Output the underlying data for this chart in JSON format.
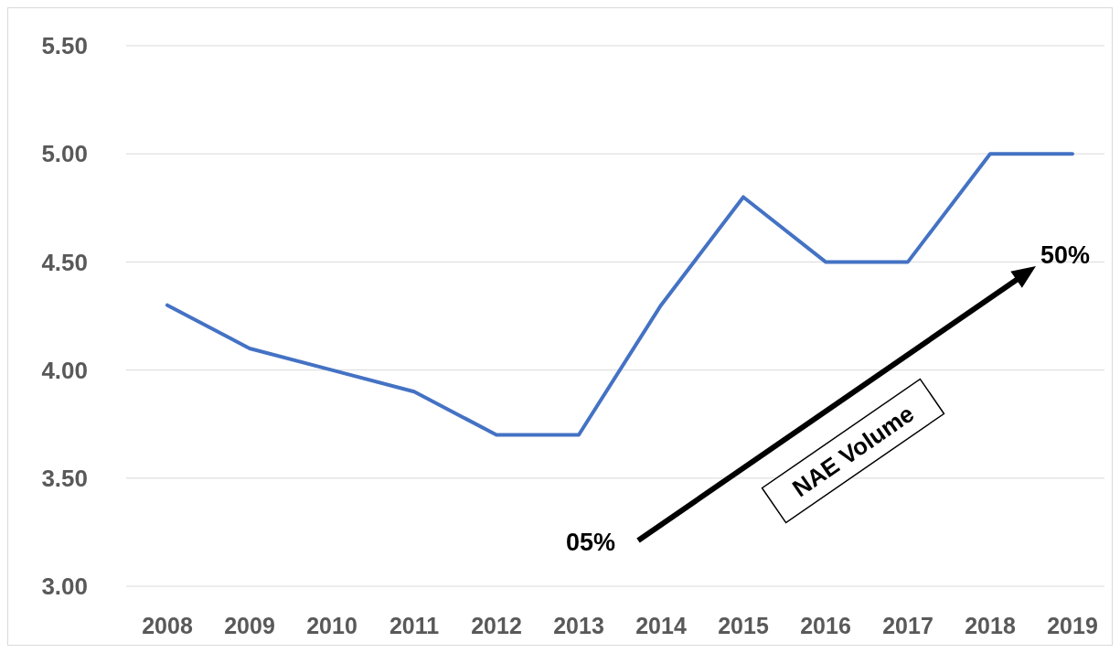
{
  "chart_data": {
    "type": "line",
    "categories": [
      "2008",
      "2009",
      "2010",
      "2011",
      "2012",
      "2013",
      "2014",
      "2015",
      "2016",
      "2017",
      "2018",
      "2019"
    ],
    "series": [
      {
        "color": "#4472c4",
        "values": [
          4.3,
          4.1,
          4.0,
          3.9,
          3.7,
          3.7,
          4.3,
          4.8,
          4.5,
          4.5,
          5.0,
          5.0
        ]
      }
    ],
    "ylim": [
      3,
      5.5
    ],
    "yticks": [
      {
        "value": 3,
        "label": "3.00"
      },
      {
        "value": 3.5,
        "label": "3.50"
      },
      {
        "value": 4,
        "label": "4.00"
      },
      {
        "value": 4.5,
        "label": "4.50"
      },
      {
        "value": 5,
        "label": "5.00"
      },
      {
        "value": 5.5,
        "label": "5.50"
      }
    ],
    "grid": "y",
    "marker": "none",
    "line_style": "solid",
    "annotations": [
      "05%",
      "50%",
      "NAE Volume"
    ]
  }
}
